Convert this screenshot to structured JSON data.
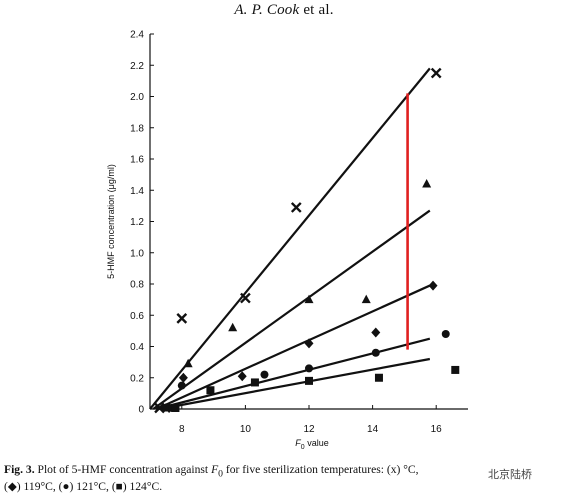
{
  "header": {
    "author": "A. P. Cook",
    "etal": " et al."
  },
  "chart_data": {
    "type": "scatter",
    "xlabel": "F",
    "xlabel_sub": "0",
    "xlabel_rest": " value",
    "ylabel": "5-HMF concentration (μg/ml)",
    "xlim": [
      7,
      17
    ],
    "ylim": [
      0,
      2.4
    ],
    "x_ticks": [
      8,
      10,
      12,
      14,
      16
    ],
    "x_ticklabels": [
      "8",
      "10",
      "12",
      "14",
      "16"
    ],
    "y_ticks": [
      0,
      0.2,
      0.4,
      0.6,
      0.8,
      1.0,
      1.2,
      1.4,
      1.6,
      1.8,
      2.0,
      2.2,
      2.4
    ],
    "y_ticklabels": [
      "0",
      "0.2",
      "0.4",
      "0.6",
      "0.8",
      "1.0",
      "1.2",
      "1.4",
      "1.6",
      "1.8",
      "2.0",
      "2.2",
      "2.4"
    ],
    "series": [
      {
        "marker": "cross",
        "points": [
          [
            7.3,
            0
          ],
          [
            8,
            0.58
          ],
          [
            10,
            0.71
          ],
          [
            11.6,
            1.29
          ],
          [
            16,
            2.15
          ]
        ],
        "fit": [
          [
            7.0,
            0
          ],
          [
            15.8,
            2.18
          ]
        ]
      },
      {
        "marker": "triangle",
        "points": [
          [
            7.5,
            0
          ],
          [
            8.2,
            0.29
          ],
          [
            9.6,
            0.52
          ],
          [
            12,
            0.7
          ],
          [
            13.8,
            0.7
          ],
          [
            15.7,
            1.44
          ]
        ],
        "fit": [
          [
            7.1,
            0
          ],
          [
            15.8,
            1.27
          ]
        ]
      },
      {
        "marker": "diamond",
        "points": [
          [
            7.6,
            0
          ],
          [
            8.05,
            0.2
          ],
          [
            9.9,
            0.21
          ],
          [
            12,
            0.42
          ],
          [
            14.1,
            0.49
          ],
          [
            15.9,
            0.79
          ]
        ],
        "fit": [
          [
            7.2,
            0
          ],
          [
            15.8,
            0.79
          ]
        ]
      },
      {
        "marker": "circle",
        "points": [
          [
            7.7,
            0
          ],
          [
            8,
            0.15
          ],
          [
            10.6,
            0.22
          ],
          [
            12,
            0.26
          ],
          [
            14.1,
            0.36
          ],
          [
            16.3,
            0.48
          ]
        ],
        "fit": [
          [
            7.2,
            0
          ],
          [
            15.8,
            0.45
          ]
        ]
      },
      {
        "marker": "square",
        "points": [
          [
            7.8,
            0
          ],
          [
            8.9,
            0.12
          ],
          [
            10.3,
            0.17
          ],
          [
            12,
            0.18
          ],
          [
            14.2,
            0.2
          ],
          [
            16.6,
            0.25
          ]
        ],
        "fit": [
          [
            7.3,
            0
          ],
          [
            15.8,
            0.32
          ]
        ]
      }
    ],
    "annotation": {
      "type": "vertical-line",
      "x": 15.1,
      "y_from": 0.38,
      "y_to": 2.02,
      "color": "#e02020"
    }
  },
  "caption": {
    "label": "Fig. 3.",
    "text": " Plot of 5-HMF concentration against ",
    "f": "F",
    "f_sub": "0",
    "text2": " for five sterilization temperatures: (x) ",
    "text3": "°C,",
    "line2": "(◆) 119°C, (●) 121°C, (■) 124°C."
  },
  "watermark": "北京陆桥"
}
